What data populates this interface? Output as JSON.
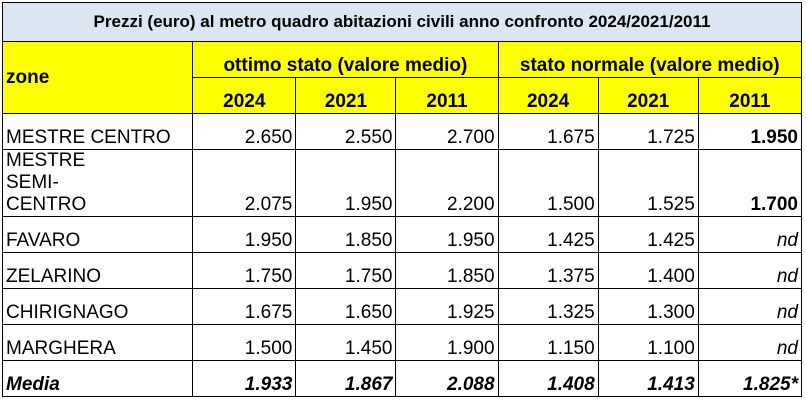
{
  "title": "Prezzi (euro) al metro quadro abitazioni civili anno confronto 2024/2021/2011",
  "header": {
    "zone": "zone",
    "groups": [
      "ottimo stato (valore medio)",
      "stato normale (valore medio)"
    ],
    "years": [
      "2024",
      "2021",
      "2011",
      "2024",
      "2021",
      "2011"
    ]
  },
  "table": {
    "rows": [
      [
        "MESTRE CENTRO",
        "2.650",
        "2.550",
        "2.700",
        "1.675",
        "1.725",
        "1.950"
      ],
      [
        "MESTRE SEMI-CENTRO",
        "2.075",
        "1.950",
        "2.200",
        "1.500",
        "1.525",
        "1.700"
      ],
      [
        "FAVARO",
        "1.950",
        "1.850",
        "1.950",
        "1.425",
        "1.425",
        "nd"
      ],
      [
        "ZELARINO",
        "1.750",
        "1.750",
        "1.850",
        "1.375",
        "1.400",
        "nd"
      ],
      [
        "CHIRIGNAGO",
        "1.675",
        "1.650",
        "1.925",
        "1.325",
        "1.300",
        "nd"
      ],
      [
        "MARGHERA",
        "1.500",
        "1.450",
        "1.900",
        "1.150",
        "1.100",
        "nd"
      ],
      [
        "Media",
        "1.933",
        "1.867",
        "2.088",
        "1.408",
        "1.413",
        "1.825*"
      ]
    ]
  }
}
